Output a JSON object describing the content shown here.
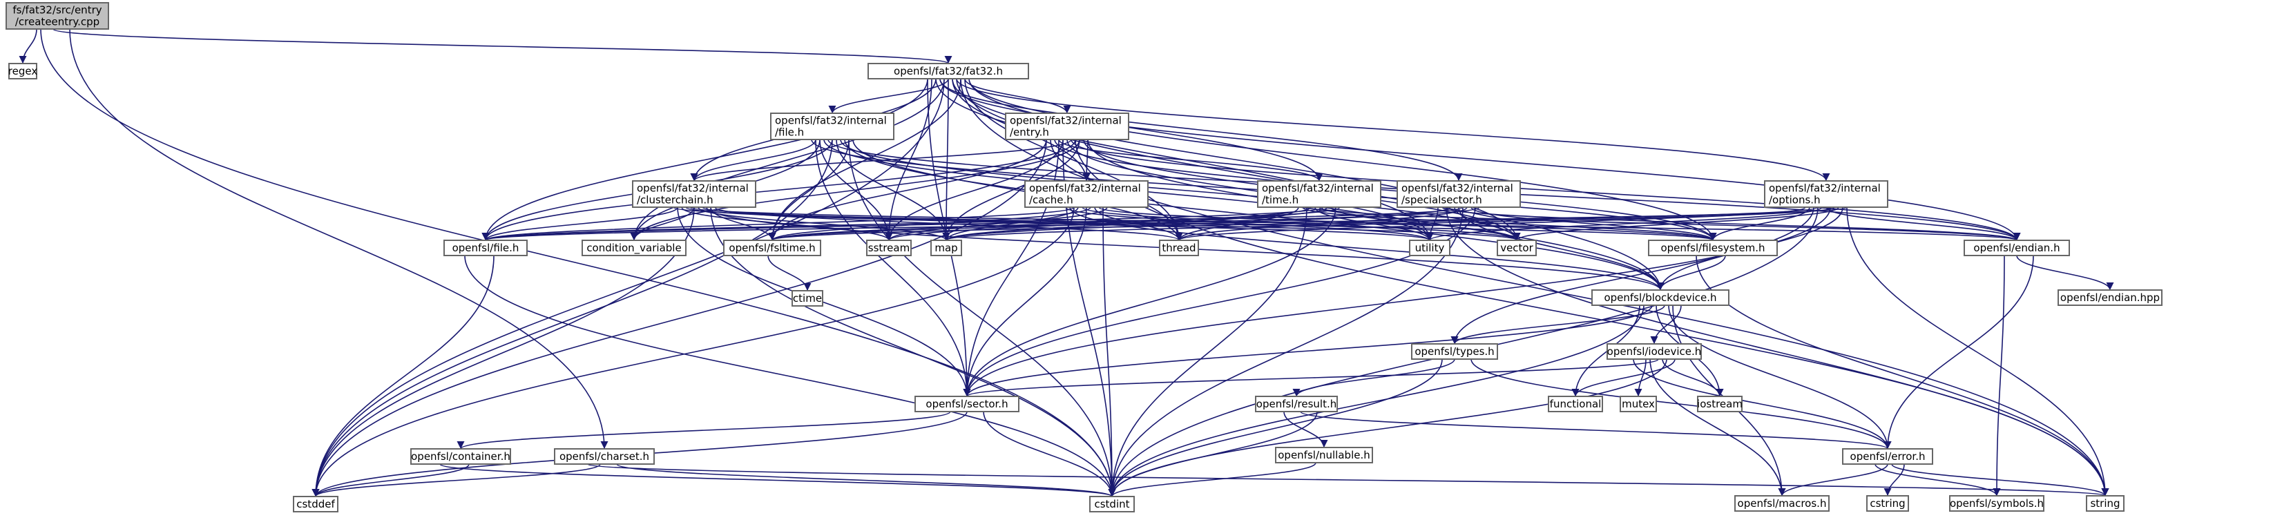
{
  "graph": {
    "root_color": "#bfbfbf",
    "node_color": "#ffffff",
    "external_text_color": "#999999",
    "edge_color": "#191970",
    "nodes": [
      {
        "id": "root",
        "lines": [
          "fs/fat32/src/entry",
          "/createentry.cpp"
        ],
        "kind": "root"
      },
      {
        "id": "regex",
        "lines": [
          "regex"
        ],
        "kind": "external"
      },
      {
        "id": "fat32h",
        "lines": [
          "openfsl/fat32/fat32.h"
        ],
        "kind": "header"
      },
      {
        "id": "fileh_int",
        "lines": [
          "openfsl/fat32/internal",
          "/file.h"
        ],
        "kind": "header"
      },
      {
        "id": "entryh",
        "lines": [
          "openfsl/fat32/internal",
          "/entry.h"
        ],
        "kind": "header"
      },
      {
        "id": "clusterchain",
        "lines": [
          "openfsl/fat32/internal",
          "/clusterchain.h"
        ],
        "kind": "header"
      },
      {
        "id": "cacheh",
        "lines": [
          "openfsl/fat32/internal",
          "/cache.h"
        ],
        "kind": "header"
      },
      {
        "id": "timeh",
        "lines": [
          "openfsl/fat32/internal",
          "/time.h"
        ],
        "kind": "header"
      },
      {
        "id": "specialsector",
        "lines": [
          "openfsl/fat32/internal",
          "/specialsector.h"
        ],
        "kind": "header"
      },
      {
        "id": "optionsh",
        "lines": [
          "openfsl/fat32/internal",
          "/options.h"
        ],
        "kind": "header"
      },
      {
        "id": "ofile",
        "lines": [
          "openfsl/file.h"
        ],
        "kind": "header"
      },
      {
        "id": "condvar",
        "lines": [
          "condition_variable"
        ],
        "kind": "external"
      },
      {
        "id": "fsltime",
        "lines": [
          "openfsl/fsltime.h"
        ],
        "kind": "header"
      },
      {
        "id": "sstream",
        "lines": [
          "sstream"
        ],
        "kind": "external"
      },
      {
        "id": "map",
        "lines": [
          "map"
        ],
        "kind": "external"
      },
      {
        "id": "thread",
        "lines": [
          "thread"
        ],
        "kind": "external"
      },
      {
        "id": "utility",
        "lines": [
          "utility"
        ],
        "kind": "external"
      },
      {
        "id": "vector",
        "lines": [
          "vector"
        ],
        "kind": "external"
      },
      {
        "id": "filesystem",
        "lines": [
          "openfsl/filesystem.h"
        ],
        "kind": "header"
      },
      {
        "id": "endian",
        "lines": [
          "openfsl/endian.h"
        ],
        "kind": "header"
      },
      {
        "id": "endianhpp",
        "lines": [
          "openfsl/endian.hpp"
        ],
        "kind": "header"
      },
      {
        "id": "ctime",
        "lines": [
          "ctime"
        ],
        "kind": "external"
      },
      {
        "id": "blockdevice",
        "lines": [
          "openfsl/blockdevice.h"
        ],
        "kind": "header"
      },
      {
        "id": "types",
        "lines": [
          "openfsl/types.h"
        ],
        "kind": "header"
      },
      {
        "id": "iodevice",
        "lines": [
          "openfsl/iodevice.h"
        ],
        "kind": "header"
      },
      {
        "id": "sector",
        "lines": [
          "openfsl/sector.h"
        ],
        "kind": "header"
      },
      {
        "id": "result",
        "lines": [
          "openfsl/result.h"
        ],
        "kind": "header"
      },
      {
        "id": "functional",
        "lines": [
          "functional"
        ],
        "kind": "external"
      },
      {
        "id": "mutex",
        "lines": [
          "mutex"
        ],
        "kind": "external"
      },
      {
        "id": "iostream",
        "lines": [
          "iostream"
        ],
        "kind": "external"
      },
      {
        "id": "nullable",
        "lines": [
          "openfsl/nullable.h"
        ],
        "kind": "header"
      },
      {
        "id": "container",
        "lines": [
          "openfsl/container.h"
        ],
        "kind": "header"
      },
      {
        "id": "charset",
        "lines": [
          "openfsl/charset.h"
        ],
        "kind": "header"
      },
      {
        "id": "error",
        "lines": [
          "openfsl/error.h"
        ],
        "kind": "header"
      },
      {
        "id": "cstddef",
        "lines": [
          "cstddef"
        ],
        "kind": "external"
      },
      {
        "id": "cstdint",
        "lines": [
          "cstdint"
        ],
        "kind": "external"
      },
      {
        "id": "macros",
        "lines": [
          "openfsl/macros.h"
        ],
        "kind": "header"
      },
      {
        "id": "cstring",
        "lines": [
          "cstring"
        ],
        "kind": "external"
      },
      {
        "id": "symbols",
        "lines": [
          "openfsl/symbols.h"
        ],
        "kind": "header"
      },
      {
        "id": "string",
        "lines": [
          "string"
        ],
        "kind": "external"
      }
    ],
    "edges": [
      [
        "root",
        "regex"
      ],
      [
        "root",
        "fat32h"
      ],
      [
        "root",
        "charset"
      ],
      [
        "root",
        "cstdint"
      ],
      [
        "fat32h",
        "fileh_int"
      ],
      [
        "fat32h",
        "entryh"
      ],
      [
        "fat32h",
        "clusterchain"
      ],
      [
        "fat32h",
        "cacheh"
      ],
      [
        "fat32h",
        "timeh"
      ],
      [
        "fat32h",
        "specialsector"
      ],
      [
        "fat32h",
        "optionsh"
      ],
      [
        "fat32h",
        "ofile"
      ],
      [
        "fat32h",
        "condvar"
      ],
      [
        "fat32h",
        "fsltime"
      ],
      [
        "fat32h",
        "sstream"
      ],
      [
        "fat32h",
        "map"
      ],
      [
        "fat32h",
        "thread"
      ],
      [
        "fat32h",
        "utility"
      ],
      [
        "fat32h",
        "vector"
      ],
      [
        "fat32h",
        "filesystem"
      ],
      [
        "fat32h",
        "endian"
      ],
      [
        "fat32h",
        "blockdevice"
      ],
      [
        "fat32h",
        "sector"
      ],
      [
        "fat32h",
        "cstddef"
      ],
      [
        "fat32h",
        "string"
      ],
      [
        "fileh_int",
        "clusterchain"
      ],
      [
        "fileh_int",
        "ofile"
      ],
      [
        "fileh_int",
        "fsltime"
      ],
      [
        "fileh_int",
        "sstream"
      ],
      [
        "fileh_int",
        "map"
      ],
      [
        "fileh_int",
        "thread"
      ],
      [
        "fileh_int",
        "utility"
      ],
      [
        "fileh_int",
        "vector"
      ],
      [
        "fileh_int",
        "filesystem"
      ],
      [
        "fileh_int",
        "endian"
      ],
      [
        "fileh_int",
        "blockdevice"
      ],
      [
        "fileh_int",
        "sector"
      ],
      [
        "fileh_int",
        "cstddef"
      ],
      [
        "fileh_int",
        "cstdint"
      ],
      [
        "fileh_int",
        "condvar"
      ],
      [
        "entryh",
        "clusterchain"
      ],
      [
        "entryh",
        "cacheh"
      ],
      [
        "entryh",
        "timeh"
      ],
      [
        "entryh",
        "ofile"
      ],
      [
        "entryh",
        "fsltime"
      ],
      [
        "entryh",
        "sstream"
      ],
      [
        "entryh",
        "map"
      ],
      [
        "entryh",
        "thread"
      ],
      [
        "entryh",
        "utility"
      ],
      [
        "entryh",
        "vector"
      ],
      [
        "entryh",
        "filesystem"
      ],
      [
        "entryh",
        "endian"
      ],
      [
        "entryh",
        "blockdevice"
      ],
      [
        "entryh",
        "sector"
      ],
      [
        "entryh",
        "string"
      ],
      [
        "entryh",
        "cstddef"
      ],
      [
        "entryh",
        "cstdint"
      ],
      [
        "entryh",
        "condvar"
      ],
      [
        "clusterchain",
        "ofile"
      ],
      [
        "clusterchain",
        "condvar"
      ],
      [
        "clusterchain",
        "fsltime"
      ],
      [
        "clusterchain",
        "sstream"
      ],
      [
        "clusterchain",
        "map"
      ],
      [
        "clusterchain",
        "thread"
      ],
      [
        "clusterchain",
        "utility"
      ],
      [
        "clusterchain",
        "vector"
      ],
      [
        "clusterchain",
        "filesystem"
      ],
      [
        "clusterchain",
        "endian"
      ],
      [
        "clusterchain",
        "blockdevice"
      ],
      [
        "clusterchain",
        "sector"
      ],
      [
        "clusterchain",
        "cstddef"
      ],
      [
        "clusterchain",
        "cstdint"
      ],
      [
        "cacheh",
        "ofile"
      ],
      [
        "cacheh",
        "fsltime"
      ],
      [
        "cacheh",
        "sstream"
      ],
      [
        "cacheh",
        "map"
      ],
      [
        "cacheh",
        "thread"
      ],
      [
        "cacheh",
        "utility"
      ],
      [
        "cacheh",
        "vector"
      ],
      [
        "cacheh",
        "filesystem"
      ],
      [
        "cacheh",
        "blockdevice"
      ],
      [
        "cacheh",
        "sector"
      ],
      [
        "cacheh",
        "cstdint"
      ],
      [
        "cacheh",
        "cstddef"
      ],
      [
        "timeh",
        "ofile"
      ],
      [
        "timeh",
        "fsltime"
      ],
      [
        "timeh",
        "sstream"
      ],
      [
        "timeh",
        "map"
      ],
      [
        "timeh",
        "thread"
      ],
      [
        "timeh",
        "utility"
      ],
      [
        "timeh",
        "vector"
      ],
      [
        "timeh",
        "filesystem"
      ],
      [
        "timeh",
        "endian"
      ],
      [
        "timeh",
        "sector"
      ],
      [
        "timeh",
        "cstdint"
      ],
      [
        "specialsector",
        "ofile"
      ],
      [
        "specialsector",
        "fsltime"
      ],
      [
        "specialsector",
        "map"
      ],
      [
        "specialsector",
        "thread"
      ],
      [
        "specialsector",
        "utility"
      ],
      [
        "specialsector",
        "vector"
      ],
      [
        "specialsector",
        "filesystem"
      ],
      [
        "specialsector",
        "endian"
      ],
      [
        "specialsector",
        "blockdevice"
      ],
      [
        "specialsector",
        "sector"
      ],
      [
        "specialsector",
        "string"
      ],
      [
        "specialsector",
        "cstdint"
      ],
      [
        "optionsh",
        "ofile"
      ],
      [
        "optionsh",
        "fsltime"
      ],
      [
        "optionsh",
        "map"
      ],
      [
        "optionsh",
        "thread"
      ],
      [
        "optionsh",
        "utility"
      ],
      [
        "optionsh",
        "vector"
      ],
      [
        "optionsh",
        "filesystem"
      ],
      [
        "optionsh",
        "endian"
      ],
      [
        "optionsh",
        "blockdevice"
      ],
      [
        "optionsh",
        "types"
      ],
      [
        "optionsh",
        "sector"
      ],
      [
        "optionsh",
        "string"
      ],
      [
        "optionsh",
        "cstdint"
      ],
      [
        "ofile",
        "cstddef"
      ],
      [
        "ofile",
        "cstdint"
      ],
      [
        "fsltime",
        "ctime"
      ],
      [
        "filesystem",
        "blockdevice"
      ],
      [
        "filesystem",
        "string"
      ],
      [
        "endian",
        "endianhpp"
      ],
      [
        "endian",
        "error"
      ],
      [
        "endian",
        "symbols"
      ],
      [
        "blockdevice",
        "types"
      ],
      [
        "blockdevice",
        "iodevice"
      ],
      [
        "blockdevice",
        "sector"
      ],
      [
        "blockdevice",
        "error"
      ],
      [
        "blockdevice",
        "functional"
      ],
      [
        "blockdevice",
        "iostream"
      ],
      [
        "blockdevice",
        "macros"
      ],
      [
        "blockdevice",
        "cstdint"
      ],
      [
        "types",
        "result"
      ],
      [
        "types",
        "error"
      ],
      [
        "types",
        "cstdint"
      ],
      [
        "iodevice",
        "sector"
      ],
      [
        "iodevice",
        "functional"
      ],
      [
        "iodevice",
        "mutex"
      ],
      [
        "iodevice",
        "iostream"
      ],
      [
        "iodevice",
        "error"
      ],
      [
        "iodevice",
        "macros"
      ],
      [
        "iodevice",
        "cstdint"
      ],
      [
        "sector",
        "container"
      ],
      [
        "sector",
        "cstddef"
      ],
      [
        "sector",
        "cstdint"
      ],
      [
        "result",
        "nullable"
      ],
      [
        "result",
        "error"
      ],
      [
        "result",
        "cstdint"
      ],
      [
        "nullable",
        "cstdint"
      ],
      [
        "container",
        "cstddef"
      ],
      [
        "container",
        "cstdint"
      ],
      [
        "charset",
        "cstddef"
      ],
      [
        "charset",
        "cstdint"
      ],
      [
        "charset",
        "string"
      ],
      [
        "error",
        "macros"
      ],
      [
        "error",
        "cstring"
      ],
      [
        "error",
        "symbols"
      ],
      [
        "error",
        "string"
      ]
    ]
  }
}
